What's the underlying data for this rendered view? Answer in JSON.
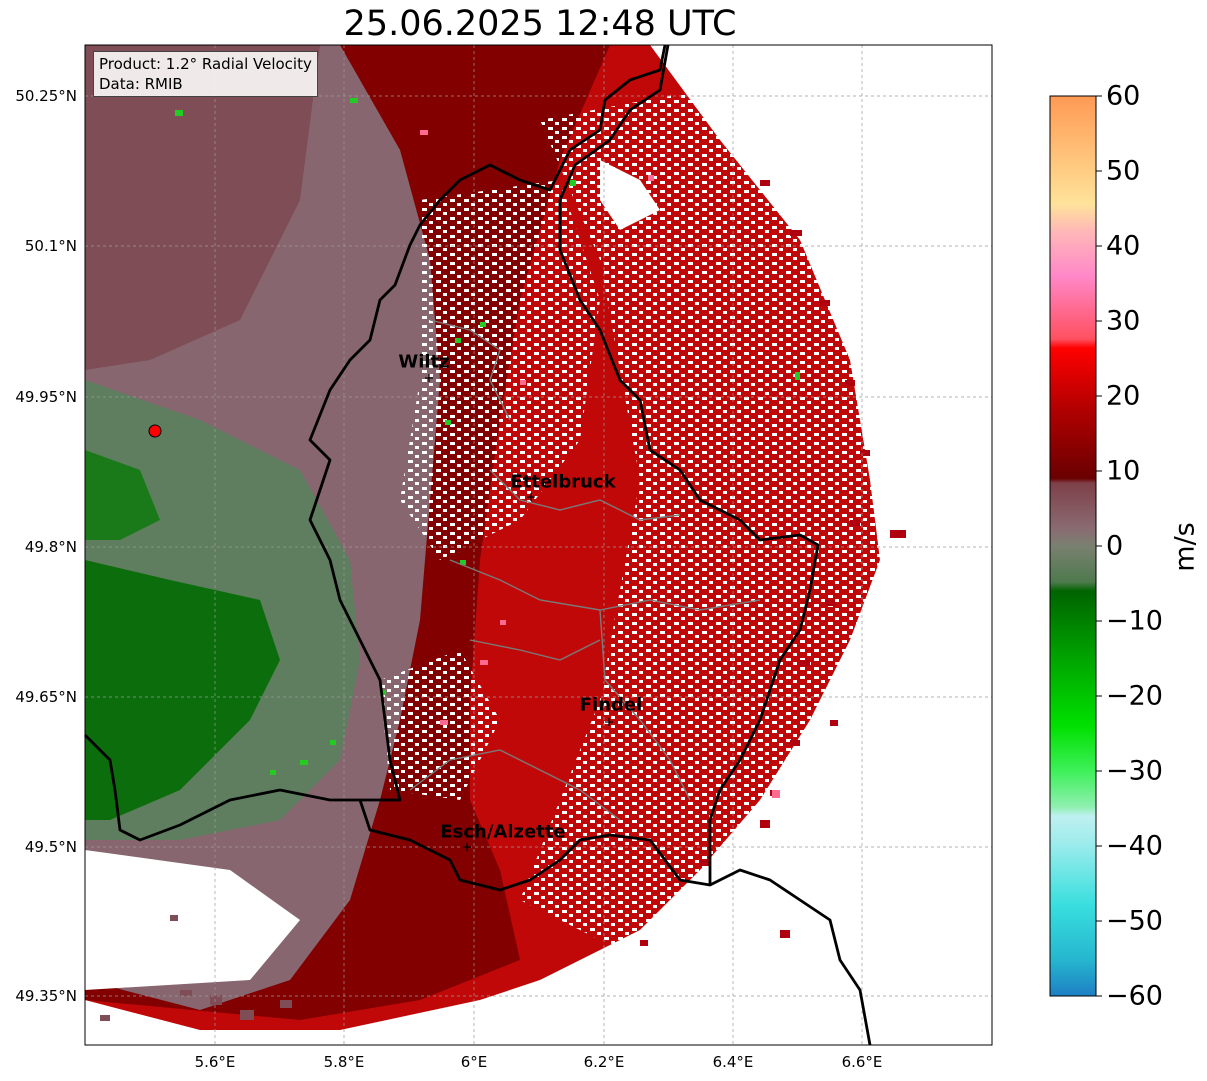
{
  "title": "25.06.2025 12:48 UTC",
  "info": {
    "product": "Product: 1.2° Radial Velocity",
    "data": "Data: RMIB"
  },
  "lat_ticks": [
    "50.25°N",
    "50.1°N",
    "49.95°N",
    "49.8°N",
    "49.65°N",
    "49.5°N",
    "49.35°N"
  ],
  "lon_ticks": [
    "5.6°E",
    "5.8°E",
    "6°E",
    "6.2°E",
    "6.4°E",
    "6.6°E"
  ],
  "cities": [
    {
      "name": "Wiltz"
    },
    {
      "name": "Ettelbruck"
    },
    {
      "name": "Findel"
    },
    {
      "name": "Esch/Alzette"
    }
  ],
  "colorbar": {
    "unit": "m/s",
    "ticks": [
      "60",
      "50",
      "40",
      "30",
      "20",
      "10",
      "0",
      "−10",
      "−20",
      "−30",
      "−40",
      "−50",
      "−60"
    ],
    "min": -60,
    "max": 60
  },
  "colors": {
    "receding_dark": "#7a0000",
    "receding_red": "#c00000",
    "approaching_green": "#0a6e0a",
    "near_zero_gray": "#8a6a72",
    "border": "#000000"
  }
}
